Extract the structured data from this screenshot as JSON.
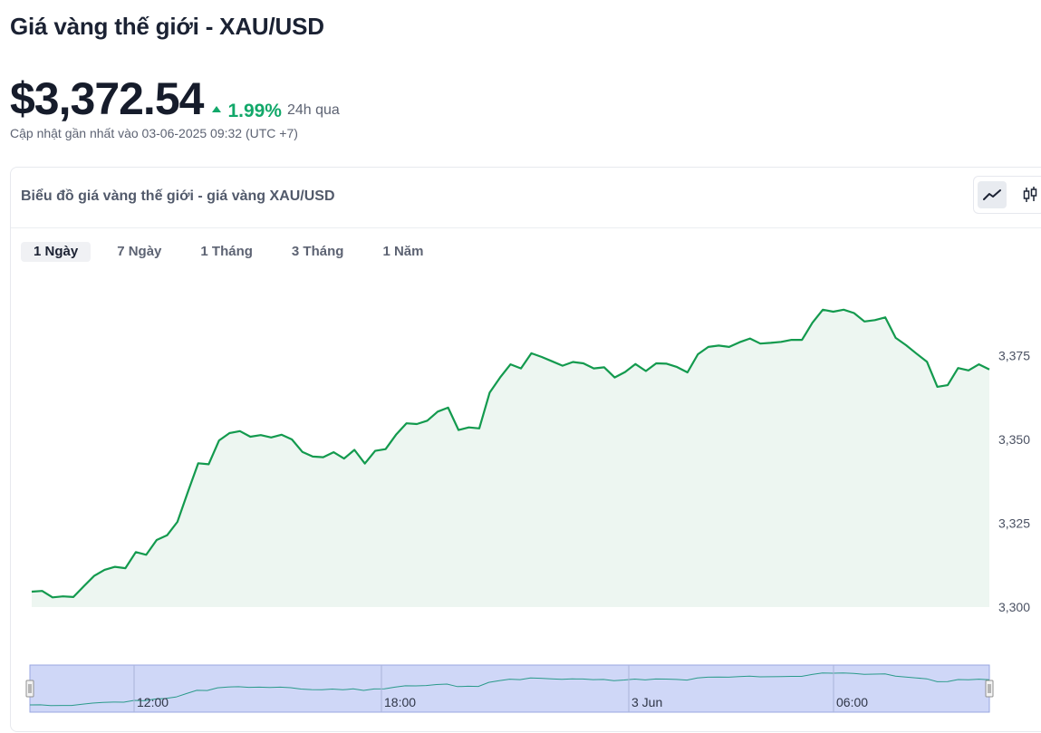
{
  "header": {
    "title": "Giá vàng thế giới - XAU/USD",
    "price": "$3,372.54",
    "change_percent": "1.99%",
    "change_period": "24h qua",
    "updated": "Cập nhật gần nhất vào 03-06-2025 09:32 (UTC +7)"
  },
  "card": {
    "title": "Biểu đồ giá vàng thế giới - giá vàng XAU/USD",
    "chart_types": [
      {
        "name": "line-chart-icon",
        "active": true
      },
      {
        "name": "candlestick-icon",
        "active": false
      }
    ],
    "tabs": [
      {
        "label": "1 Ngày",
        "active": true
      },
      {
        "label": "7 Ngày",
        "active": false
      },
      {
        "label": "1 Tháng",
        "active": false
      },
      {
        "label": "3 Tháng",
        "active": false
      },
      {
        "label": "1 Năm",
        "active": false
      }
    ]
  },
  "colors": {
    "up": "#12a86a",
    "line": "#139a4e",
    "area": "#edf6f1",
    "navigator": "#cfd7f7"
  },
  "chart_data": {
    "type": "area",
    "ylim": [
      3300,
      3400
    ],
    "yticks": [
      3300,
      3325,
      3350,
      3375
    ],
    "ytick_labels": [
      "3,300",
      "3,325",
      "3,350",
      "3,375"
    ],
    "navigator_labels": [
      "12:00",
      "18:00",
      "3 Jun",
      "06:00"
    ],
    "series": [
      {
        "values": [
          3304.6,
          3304.8,
          3302.9,
          3303.2,
          3303.0,
          3306.2,
          3309.3,
          3311.1,
          3312.0,
          3311.6,
          3316.4,
          3315.6,
          3320.0,
          3321.4,
          3325.4,
          3334.3,
          3342.9,
          3342.6,
          3349.7,
          3351.9,
          3352.5,
          3350.8,
          3351.3,
          3350.6,
          3351.4,
          3350.0,
          3346.3,
          3344.9,
          3344.7,
          3346.2,
          3344.3,
          3346.9,
          3342.8,
          3346.6,
          3347.1,
          3351.4,
          3354.8,
          3354.6,
          3355.6,
          3358.3,
          3359.5,
          3352.8,
          3353.6,
          3353.3,
          3364.0,
          3368.5,
          3372.4,
          3371.2,
          3375.7,
          3374.6,
          3373.3,
          3372.0,
          3373.1,
          3372.7,
          3371.2,
          3371.5,
          3368.5,
          3370.1,
          3372.5,
          3370.4,
          3372.7,
          3372.6,
          3371.6,
          3370.0,
          3375.4,
          3377.6,
          3378.0,
          3377.6,
          3379.0,
          3380.1,
          3378.6,
          3378.8,
          3379.1,
          3379.7,
          3379.7,
          3384.8,
          3388.7,
          3388.1,
          3388.7,
          3387.7,
          3385.2,
          3385.6,
          3386.4,
          3380.3,
          3378.1,
          3375.6,
          3373.2,
          3365.7,
          3366.2,
          3371.3,
          3370.6,
          3372.4,
          3370.9
        ]
      }
    ]
  }
}
